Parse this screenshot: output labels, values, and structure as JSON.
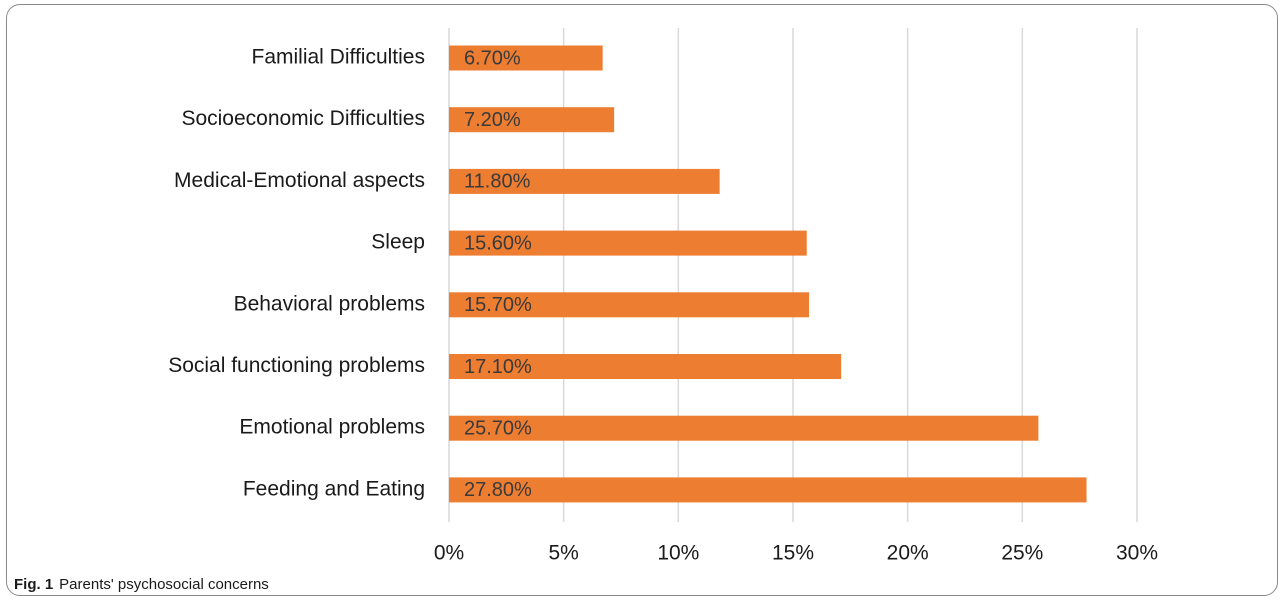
{
  "chart_data": {
    "type": "bar",
    "orientation": "horizontal",
    "categories": [
      "Familial Difficulties",
      "Socioeconomic Difficulties",
      "Medical-Emotional aspects",
      "Sleep",
      "Behavioral problems",
      "Social functioning problems",
      "Emotional problems",
      "Feeding and Eating"
    ],
    "values": [
      6.7,
      7.2,
      11.8,
      15.6,
      15.7,
      17.1,
      25.7,
      27.8
    ],
    "data_labels": [
      "6.70%",
      "7.20%",
      "11.80%",
      "15.60%",
      "15.70%",
      "17.10%",
      "25.70%",
      "27.80%"
    ],
    "xlim": [
      0,
      30
    ],
    "x_ticks": [
      0,
      5,
      10,
      15,
      20,
      25,
      30
    ],
    "x_tick_labels": [
      "0%",
      "5%",
      "10%",
      "15%",
      "20%",
      "25%",
      "30%"
    ],
    "grid": "vertical",
    "legend": "none",
    "bar_color": "#ED7D31",
    "grid_color": "#D9D9D9"
  },
  "caption": {
    "figure_label": "Fig. 1",
    "text": "Parents' psychosocial concerns"
  }
}
